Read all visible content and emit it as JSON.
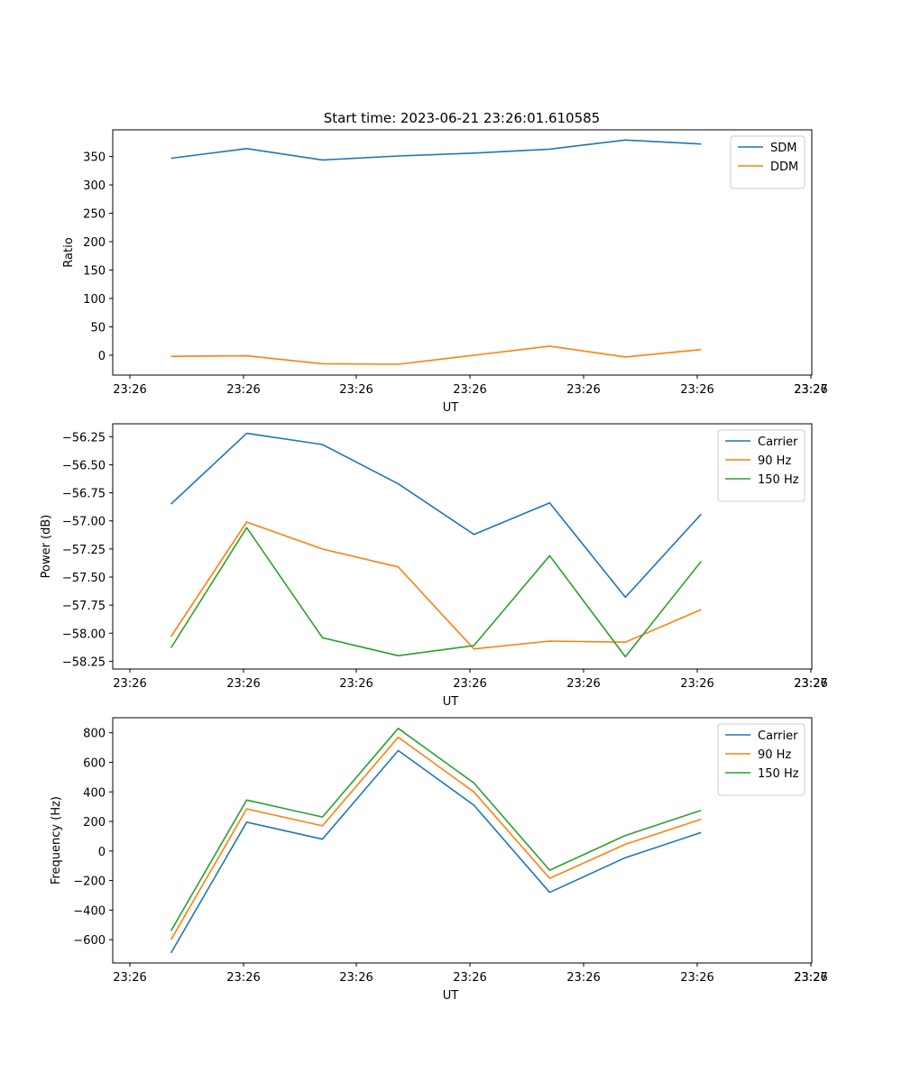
{
  "title": "Start time: 2023-06-21 23:26:01.610585",
  "colors": {
    "c0": "#1f77b4",
    "c1": "#ff7f0e",
    "c2": "#2ca02c"
  },
  "chart_data": [
    {
      "type": "line",
      "xlabel": "UT",
      "ylabel": "Ratio",
      "legend": "top-right",
      "grid": false,
      "xtick_labels": [
        "23:26",
        "23:26",
        "23:26",
        "23:26",
        "23:26",
        "23:26",
        "23:26"
      ],
      "x_index": [
        0.5,
        1.15,
        1.8,
        2.45,
        3.1,
        3.75,
        4.4,
        5.05
      ],
      "xlim": [
        0,
        6
      ],
      "ylim": [
        -35,
        397
      ],
      "yticks": [
        0,
        50,
        100,
        150,
        200,
        250,
        300,
        350
      ],
      "series": [
        {
          "name": "SDM",
          "color": "#1f77b4",
          "values": [
            347,
            364,
            344,
            351,
            356,
            363,
            379,
            372
          ]
        },
        {
          "name": "DDM",
          "color": "#ff7f0e",
          "values": [
            -2,
            -1,
            -15,
            -16,
            0,
            16,
            -3,
            10
          ]
        }
      ]
    },
    {
      "type": "line",
      "xlabel": "UT",
      "ylabel": "Power (dB)",
      "legend": "top-right",
      "grid": false,
      "xtick_labels": [
        "23:26",
        "23:26",
        "23:26",
        "23:26",
        "23:26",
        "23:26",
        "23:26",
        "23:27"
      ],
      "x_index": [
        0.5,
        1.15,
        1.8,
        2.45,
        3.1,
        3.75,
        4.4,
        5.05
      ],
      "xlim": [
        0,
        6
      ],
      "ylim": [
        -58.319,
        -56.135
      ],
      "yticks": [
        -58.25,
        -58.0,
        -57.75,
        -57.5,
        -57.25,
        -57.0,
        -56.75,
        -56.5,
        -56.25
      ],
      "ytick_labels": [
        "−58.25",
        "−58.00",
        "−57.75",
        "−57.50",
        "−57.25",
        "−57.00",
        "−56.75",
        "−56.50",
        "−56.25"
      ],
      "series": [
        {
          "name": "Carrier",
          "color": "#1f77b4",
          "values": [
            -56.85,
            -56.22,
            -56.32,
            -56.67,
            -57.12,
            -56.84,
            -57.68,
            -56.94
          ]
        },
        {
          "name": "90 Hz",
          "color": "#ff7f0e",
          "values": [
            -58.03,
            -57.01,
            -57.25,
            -57.41,
            -58.14,
            -58.07,
            -58.08,
            -57.79
          ]
        },
        {
          "name": "150 Hz",
          "color": "#2ca02c",
          "values": [
            -58.13,
            -57.06,
            -58.04,
            -58.2,
            -58.11,
            -57.31,
            -58.21,
            -57.36
          ]
        }
      ]
    },
    {
      "type": "line",
      "xlabel": "UT",
      "ylabel": "Frequency (Hz)",
      "legend": "top-right",
      "grid": false,
      "xtick_labels": [
        "23:26",
        "23:26",
        "23:26",
        "23:26",
        "23:26",
        "23:26",
        "23:26",
        "23:27"
      ],
      "x_index": [
        0.5,
        1.15,
        1.8,
        2.45,
        3.1,
        3.75,
        4.4,
        5.05
      ],
      "xlim": [
        0,
        6
      ],
      "ylim": [
        -758,
        902
      ],
      "yticks": [
        -600,
        -400,
        -200,
        0,
        200,
        400,
        600,
        800
      ],
      "ytick_labels": [
        "−600",
        "−400",
        "−200",
        "0",
        "200",
        "400",
        "600",
        "800"
      ],
      "series": [
        {
          "name": "Carrier",
          "color": "#1f77b4",
          "values": [
            -690,
            195,
            80,
            680,
            310,
            -280,
            -45,
            125
          ]
        },
        {
          "name": "90 Hz",
          "color": "#ff7f0e",
          "values": [
            -600,
            285,
            170,
            770,
            400,
            -185,
            45,
            215
          ]
        },
        {
          "name": "150 Hz",
          "color": "#2ca02c",
          "values": [
            -540,
            345,
            230,
            830,
            460,
            -130,
            105,
            275
          ]
        }
      ]
    }
  ]
}
